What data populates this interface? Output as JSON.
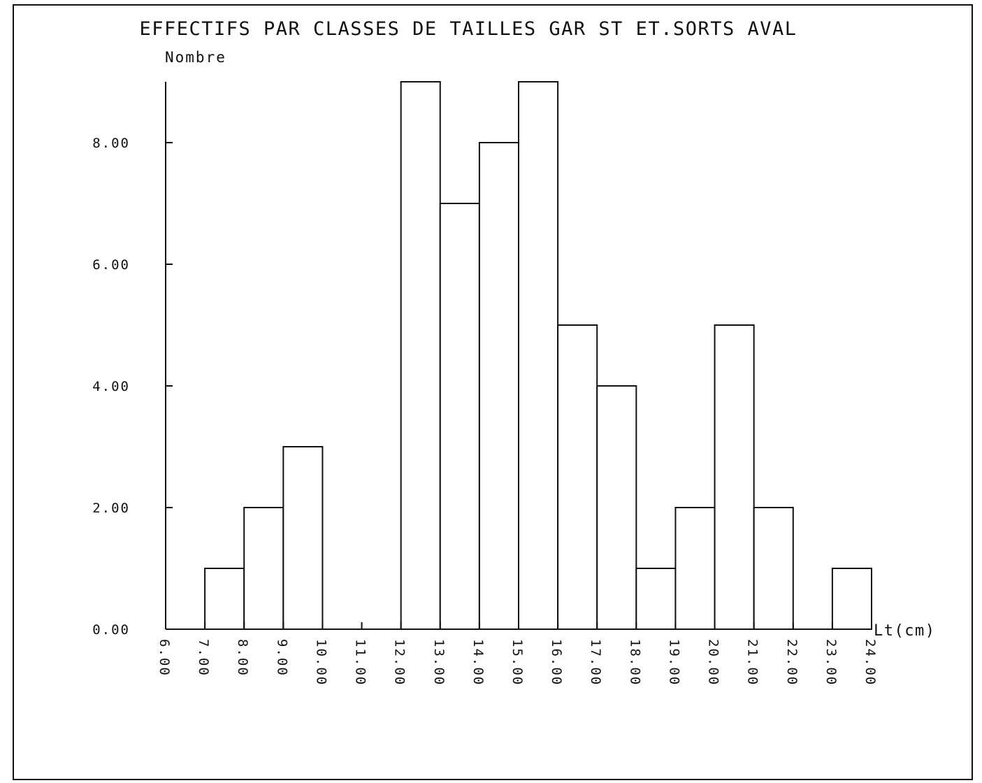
{
  "chart_data": {
    "type": "bar",
    "title": "EFFECTIFS PAR CLASSES DE TAILLES GAR ST ET.SORTS AVAL",
    "ylabel": "Nombre",
    "xlabel": "Lt(cm)",
    "xlim": [
      6,
      24
    ],
    "ylim": [
      0,
      9
    ],
    "y_ticks": [
      0,
      2,
      4,
      6,
      8
    ],
    "y_tick_labels": [
      "0.00",
      "2.00",
      "4.00",
      "6.00",
      "8.00"
    ],
    "x_ticks": [
      6,
      7,
      8,
      9,
      10,
      11,
      12,
      13,
      14,
      15,
      16,
      17,
      18,
      19,
      20,
      21,
      22,
      23,
      24
    ],
    "x_tick_labels": [
      "6.00",
      "7.00",
      "8.00",
      "9.00",
      "10.00",
      "11.00",
      "12.00",
      "13.00",
      "14.00",
      "15.00",
      "16.00",
      "17.00",
      "18.00",
      "19.00",
      "20.00",
      "21.00",
      "22.00",
      "23.00",
      "24.00"
    ],
    "bins": [
      {
        "start": 6,
        "end": 7,
        "value": 0
      },
      {
        "start": 7,
        "end": 8,
        "value": 1
      },
      {
        "start": 8,
        "end": 9,
        "value": 2
      },
      {
        "start": 9,
        "end": 10,
        "value": 3
      },
      {
        "start": 10,
        "end": 11,
        "value": 0
      },
      {
        "start": 11,
        "end": 12,
        "value": 0
      },
      {
        "start": 12,
        "end": 13,
        "value": 9
      },
      {
        "start": 13,
        "end": 14,
        "value": 7
      },
      {
        "start": 14,
        "end": 15,
        "value": 8
      },
      {
        "start": 15,
        "end": 16,
        "value": 9
      },
      {
        "start": 16,
        "end": 17,
        "value": 5
      },
      {
        "start": 17,
        "end": 18,
        "value": 4
      },
      {
        "start": 18,
        "end": 19,
        "value": 1
      },
      {
        "start": 19,
        "end": 20,
        "value": 2
      },
      {
        "start": 20,
        "end": 21,
        "value": 5
      },
      {
        "start": 21,
        "end": 22,
        "value": 2
      },
      {
        "start": 22,
        "end": 23,
        "value": 0
      },
      {
        "start": 23,
        "end": 24,
        "value": 1
      }
    ],
    "grid": false,
    "legend": "none"
  }
}
